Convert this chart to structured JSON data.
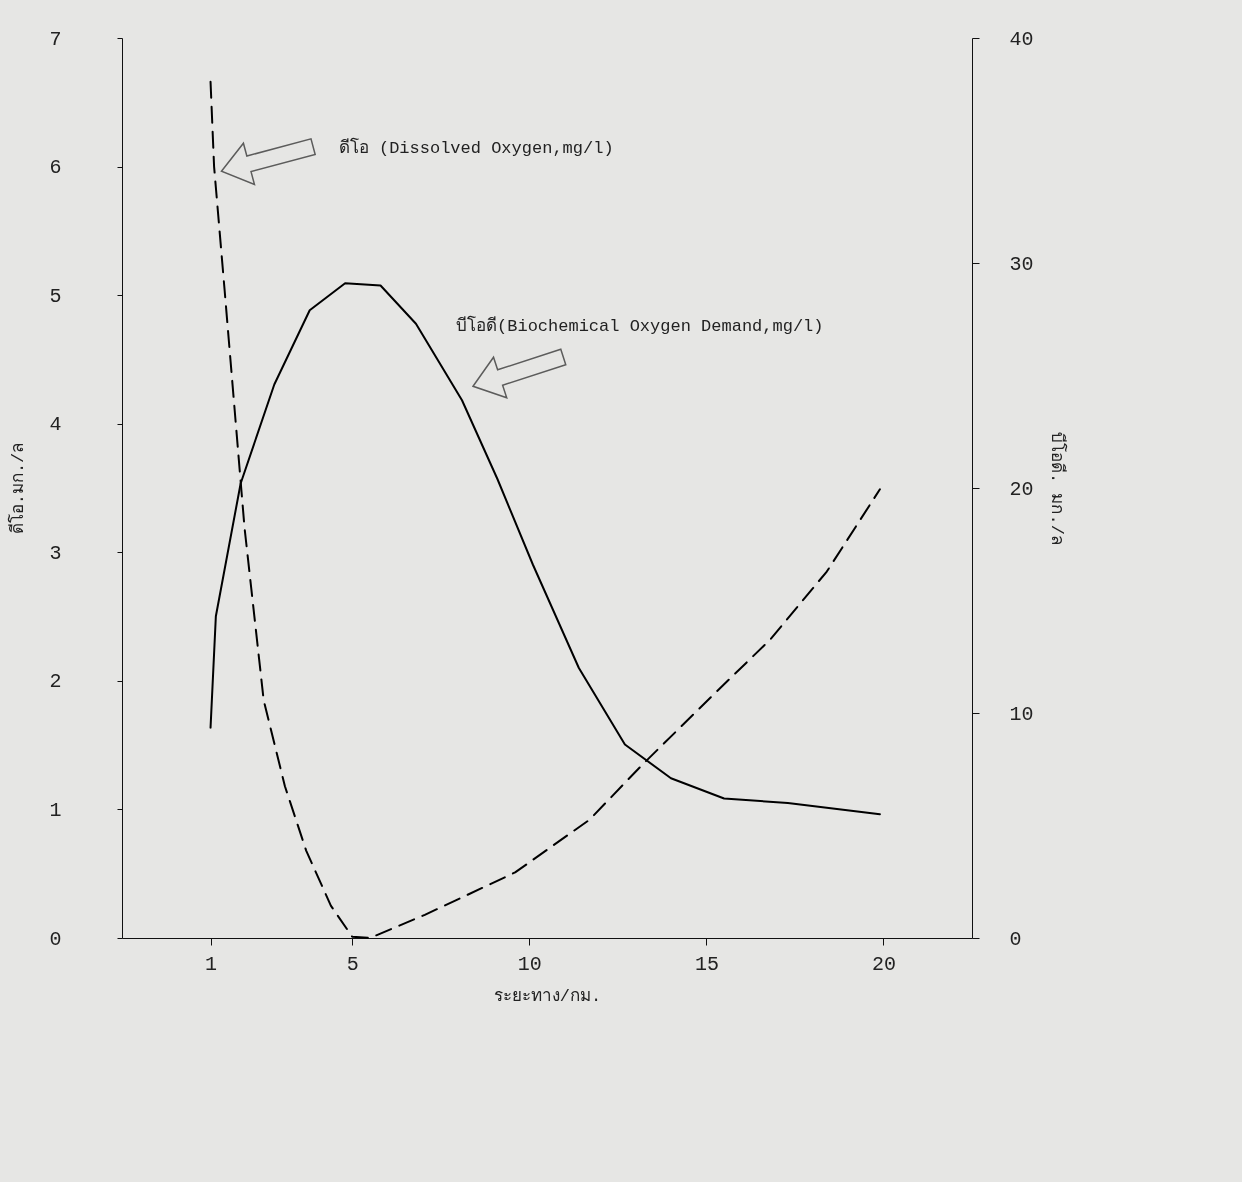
{
  "chart_data": {
    "type": "line",
    "xlabel": "ระยะทาง/กม.",
    "ylabel": "ดีโอ.มก./ล",
    "y2label": "บีโอดี. มก./ล",
    "xlim": [
      -1.5,
      22.5
    ],
    "xticks": [
      1,
      5,
      10,
      15,
      20
    ],
    "ylim": [
      0,
      7
    ],
    "yticks": [
      0,
      1,
      2,
      3,
      4,
      5,
      6,
      7
    ],
    "y2lim": [
      0,
      40
    ],
    "y2ticks": [
      0,
      10,
      20,
      30,
      40
    ],
    "grid": false,
    "series": [
      {
        "color": "#000000",
        "line_style": "dashed",
        "x": [
          1,
          1.1,
          1.4,
          1.96,
          2.5,
          3.1,
          3.7,
          4.4,
          5,
          5.5,
          7.05,
          9.6,
          11.7,
          13.2,
          15.3,
          16.8,
          18.4,
          19.9
        ],
        "values": [
          6.66,
          6.0,
          5.03,
          3.19,
          1.85,
          1.18,
          0.68,
          0.25,
          0.01,
          0,
          0.18,
          0.51,
          0.92,
          1.35,
          1.92,
          2.32,
          2.85,
          3.49
        ]
      },
      {
        "color": "#000000",
        "line_style": "solid",
        "axis": "y2",
        "x": [
          1,
          1.15,
          1.85,
          2.8,
          3.8,
          4.8,
          5.8,
          6.8,
          8.1,
          9.1,
          10.1,
          11.4,
          12.7,
          14,
          15.5,
          17.3,
          19.9
        ],
        "values": [
          9.35,
          14.3,
          20.2,
          24.6,
          27.9,
          29.1,
          29.0,
          27.3,
          23.9,
          20.4,
          16.6,
          12.0,
          8.6,
          7.1,
          6.2,
          6.0,
          5.5
        ]
      }
    ],
    "annotations": [
      "ดีโอ (Dissolved Oxygen,mg/l)",
      "บีโอดี(Biochemical Oxygen Demand,mg/l)"
    ]
  }
}
